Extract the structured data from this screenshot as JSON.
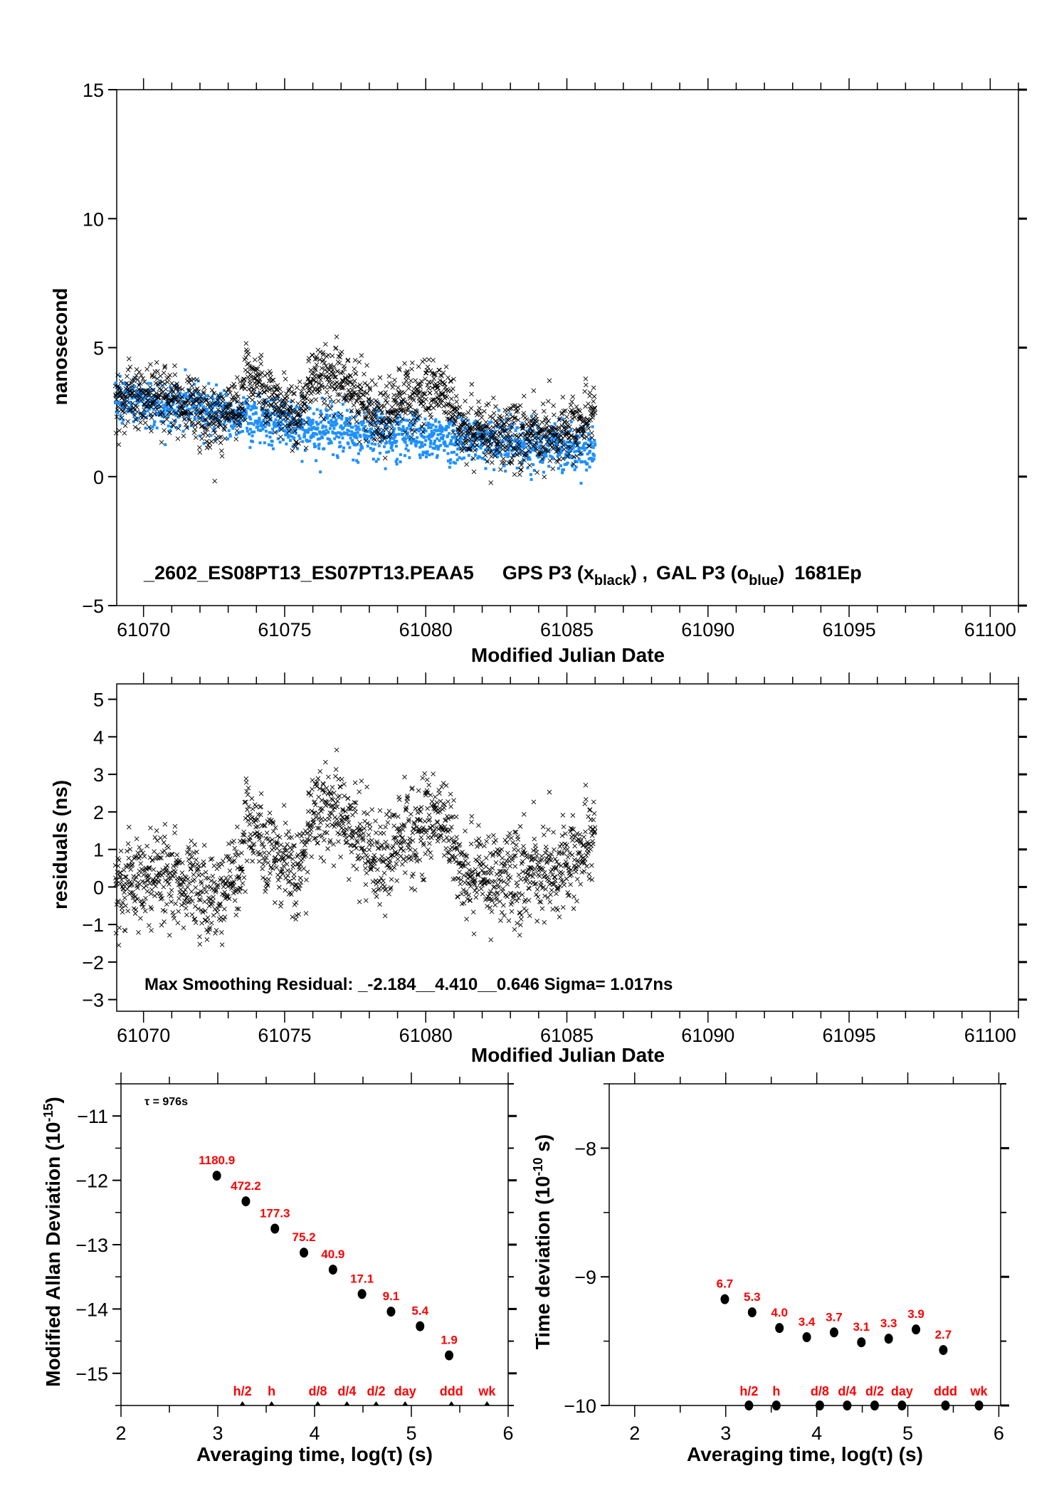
{
  "colors": {
    "gps": "#000000",
    "gal": "#1e90ff",
    "label": "#ff0000"
  },
  "chart_data": [
    {
      "type": "scatter",
      "id": "clock-offset",
      "ylabel": "nanosecond",
      "xlabel": "Modified Julian Date",
      "xlim": [
        61069.05,
        61101.0
      ],
      "ylim": [
        -5,
        15
      ],
      "xticks": [
        61070,
        61075,
        61080,
        61085,
        61090,
        61095,
        61100
      ],
      "xtick_labels": [
        "61070",
        "61075",
        "61080",
        "61085",
        "61090",
        "61095",
        "61100"
      ],
      "yticks": [
        -5,
        0,
        5,
        10,
        15
      ],
      "ytick_labels": [
        "−5",
        "0",
        "5",
        "10",
        "15"
      ],
      "annotation": {
        "filename": "_2602_ES08PT13_ES07PT13.PEAA5",
        "gps_label": "GPS P3 (x",
        "gps_sub": "black",
        "sep": ") ,",
        "gal_label": "GAL P3 (o",
        "gal_sub": "blue",
        "close": ")",
        "epochs": "1681Ep"
      },
      "n_points": 1681,
      "x_range_data": [
        61069.0,
        61086.0
      ],
      "series": [
        {
          "name": "GAL P3 (o blue)",
          "marker": "square",
          "trend_x": [
            61069,
            61072,
            61075,
            61078,
            61081,
            61084,
            61086
          ],
          "trend_y": [
            3.0,
            2.6,
            2.0,
            1.7,
            1.5,
            1.2,
            1.1
          ],
          "noise_sd": 0.45
        },
        {
          "name": "GPS P3 (x black)",
          "marker": "x",
          "definition": "GAL trend + residual series"
        }
      ]
    },
    {
      "type": "scatter",
      "id": "residuals",
      "ylabel": "residuals (ns)",
      "xlabel": "Modified Julian Date",
      "xlim": [
        61069.05,
        61101.0
      ],
      "ylim": [
        -3.31,
        5.41
      ],
      "xticks": [
        61070,
        61075,
        61080,
        61085,
        61090,
        61095,
        61100
      ],
      "xtick_labels": [
        "61070",
        "61075",
        "61080",
        "61085",
        "61090",
        "61095",
        "61100"
      ],
      "yticks": [
        -3,
        -2,
        -1,
        0,
        1,
        2,
        3,
        4,
        5
      ],
      "ytick_labels": [
        "−3",
        "−2",
        "−1",
        "0",
        "1",
        "2",
        "3",
        "4",
        "5"
      ],
      "annotation": "Max Smoothing Residual: _-2.184__4.410__0.646  Sigma= 1.017ns",
      "residual_trend_x": [
        61069,
        61070,
        61071,
        61072,
        61072.8,
        61073.4,
        61073.7,
        61074.2,
        61075,
        61075.5,
        61076,
        61077,
        61077.6,
        61078.2,
        61079,
        61080,
        61080.6,
        61081.2,
        61082,
        61083,
        61084,
        61085,
        61086
      ],
      "residual_trend_y": [
        0.0,
        0.2,
        0.3,
        0.0,
        -0.2,
        0.4,
        2.2,
        1.0,
        0.8,
        0.3,
        2.0,
        2.0,
        1.2,
        0.6,
        1.1,
        1.7,
        2.0,
        0.5,
        0.3,
        0.2,
        0.3,
        0.5,
        1.5
      ],
      "noise_sd": 0.6
    },
    {
      "type": "scatter",
      "id": "mdev",
      "ylabel": "Modified Allan Deviation (10",
      "ylabel_sup": "-15",
      "ylabel_close": ")",
      "xlabel": "Averaging time, log(τ) (s)",
      "xlim": [
        2,
        6
      ],
      "ylim": [
        -15.5,
        -10.5
      ],
      "xticks": [
        2,
        3,
        4,
        5,
        6
      ],
      "xtick_labels": [
        "2",
        "3",
        "4",
        "5",
        "6"
      ],
      "yticks": [
        -15,
        -14,
        -13,
        -12,
        -11
      ],
      "ytick_labels": [
        "−15",
        "−14",
        "−13",
        "−12",
        "−11"
      ],
      "tau_label": "τ = 976s",
      "x": [
        2.99,
        3.29,
        3.59,
        3.89,
        4.19,
        4.49,
        4.79,
        5.09,
        5.39
      ],
      "y": [
        -11.928,
        -12.326,
        -12.751,
        -13.124,
        -13.388,
        -13.767,
        -14.041,
        -14.268,
        -14.721
      ],
      "labels": [
        "1180.9",
        "472.2",
        "177.3",
        "75.2",
        "40.9",
        "17.1",
        "9.1",
        "5.4",
        "1.9"
      ]
    },
    {
      "type": "scatter",
      "id": "tdev",
      "ylabel": "Time deviation (10",
      "ylabel_sup": "-10",
      "ylabel_close": " s)",
      "xlabel": "Averaging time, log(τ) (s)",
      "xlim": [
        1.72,
        6.02
      ],
      "ylim": [
        -10,
        -7.5
      ],
      "xticks": [
        2,
        3,
        4,
        5,
        6
      ],
      "xtick_labels": [
        "2",
        "3",
        "4",
        "5",
        "6"
      ],
      "yticks": [
        -10,
        -9,
        -8
      ],
      "ytick_labels": [
        "−10",
        "−9",
        "−8"
      ],
      "x": [
        2.99,
        3.29,
        3.59,
        3.89,
        4.19,
        4.49,
        4.79,
        5.09,
        5.39
      ],
      "y": [
        -9.174,
        -9.276,
        -9.398,
        -9.469,
        -9.432,
        -9.509,
        -9.481,
        -9.409,
        -9.569
      ],
      "labels": [
        "6.7",
        "5.3",
        "4.0",
        "3.4",
        "3.7",
        "3.1",
        "3.3",
        "3.9",
        "2.7"
      ]
    }
  ],
  "time_markers": {
    "x": [
      3.255,
      3.556,
      4.033,
      4.334,
      4.636,
      4.936,
      5.414,
      5.782
    ],
    "labels": [
      "h/2",
      "h",
      "d/8",
      "d/4",
      "d/2",
      "day",
      "ddd",
      "wk"
    ]
  }
}
